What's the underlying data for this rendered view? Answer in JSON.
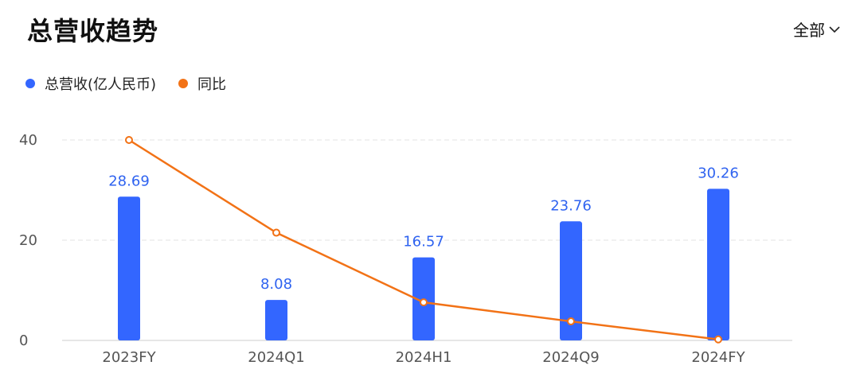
{
  "header": {
    "title": "总营收趋势",
    "filter_label": "全部"
  },
  "colors": {
    "bar": "#3366ff",
    "line": "#f27216",
    "grid": "#e3e3e3"
  },
  "chart_data": {
    "type": "bar",
    "categories": [
      "2023FY",
      "2024Q1",
      "2024H1",
      "2024Q9",
      "2024FY"
    ],
    "series": [
      {
        "name": "总营收(亿人民币)",
        "type": "bar",
        "values": [
          28.69,
          8.08,
          16.57,
          23.76,
          30.26
        ]
      },
      {
        "name": "同比",
        "type": "line",
        "values": [
          40,
          21.5,
          7.6,
          3.8,
          0.2
        ]
      }
    ],
    "yticks": [
      0,
      20,
      40
    ],
    "ylim": [
      0,
      40
    ],
    "grid": true,
    "legend_position": "top-left"
  }
}
